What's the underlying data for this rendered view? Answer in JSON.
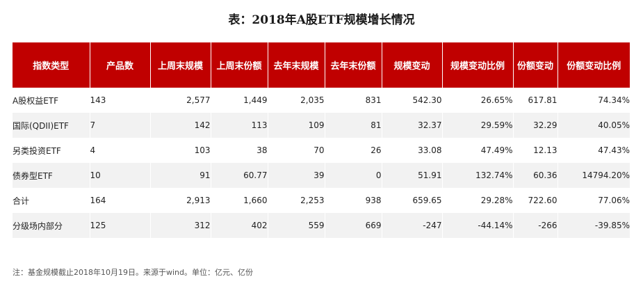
{
  "title": "表：2018年A股ETF规模增长情况",
  "table": {
    "headers": [
      "指数类型",
      "产品数",
      "上周末规模",
      "上周末份额",
      "去年末规模",
      "去年末份额",
      "规模变动",
      "规模变动比例",
      "份额变动",
      "份额变动比例"
    ],
    "rows": [
      [
        "A股权益ETF",
        "143",
        "2,577",
        "1,449",
        "2,035",
        "831",
        "542.30",
        "26.65%",
        "617.81",
        "74.34%"
      ],
      [
        "国际(QDII)ETF",
        "7",
        "142",
        "113",
        "109",
        "81",
        "32.37",
        "29.59%",
        "32.29",
        "40.05%"
      ],
      [
        "另类投资ETF",
        "4",
        "103",
        "38",
        "70",
        "26",
        "33.08",
        "47.49%",
        "12.13",
        "47.43%"
      ],
      [
        "债券型ETF",
        "10",
        "91",
        "60.77",
        "39",
        "0",
        "51.91",
        "132.74%",
        "60.36",
        "14794.20%"
      ],
      [
        "合计",
        "164",
        "2,913",
        "1,660",
        "2,253",
        "938",
        "659.65",
        "29.28%",
        "722.60",
        "77.06%"
      ],
      [
        "分级场内部分",
        "125",
        "312",
        "402",
        "559",
        "669",
        "-247",
        "-44.14%",
        "-266",
        "-39.85%"
      ]
    ]
  },
  "note": "注：基金规模截止2018年10月19日。来源于wind。单位：亿元、亿份",
  "colors": {
    "header_bg": "#c00000",
    "header_text": "#ffffff",
    "stripe": "#f2f2f2"
  }
}
